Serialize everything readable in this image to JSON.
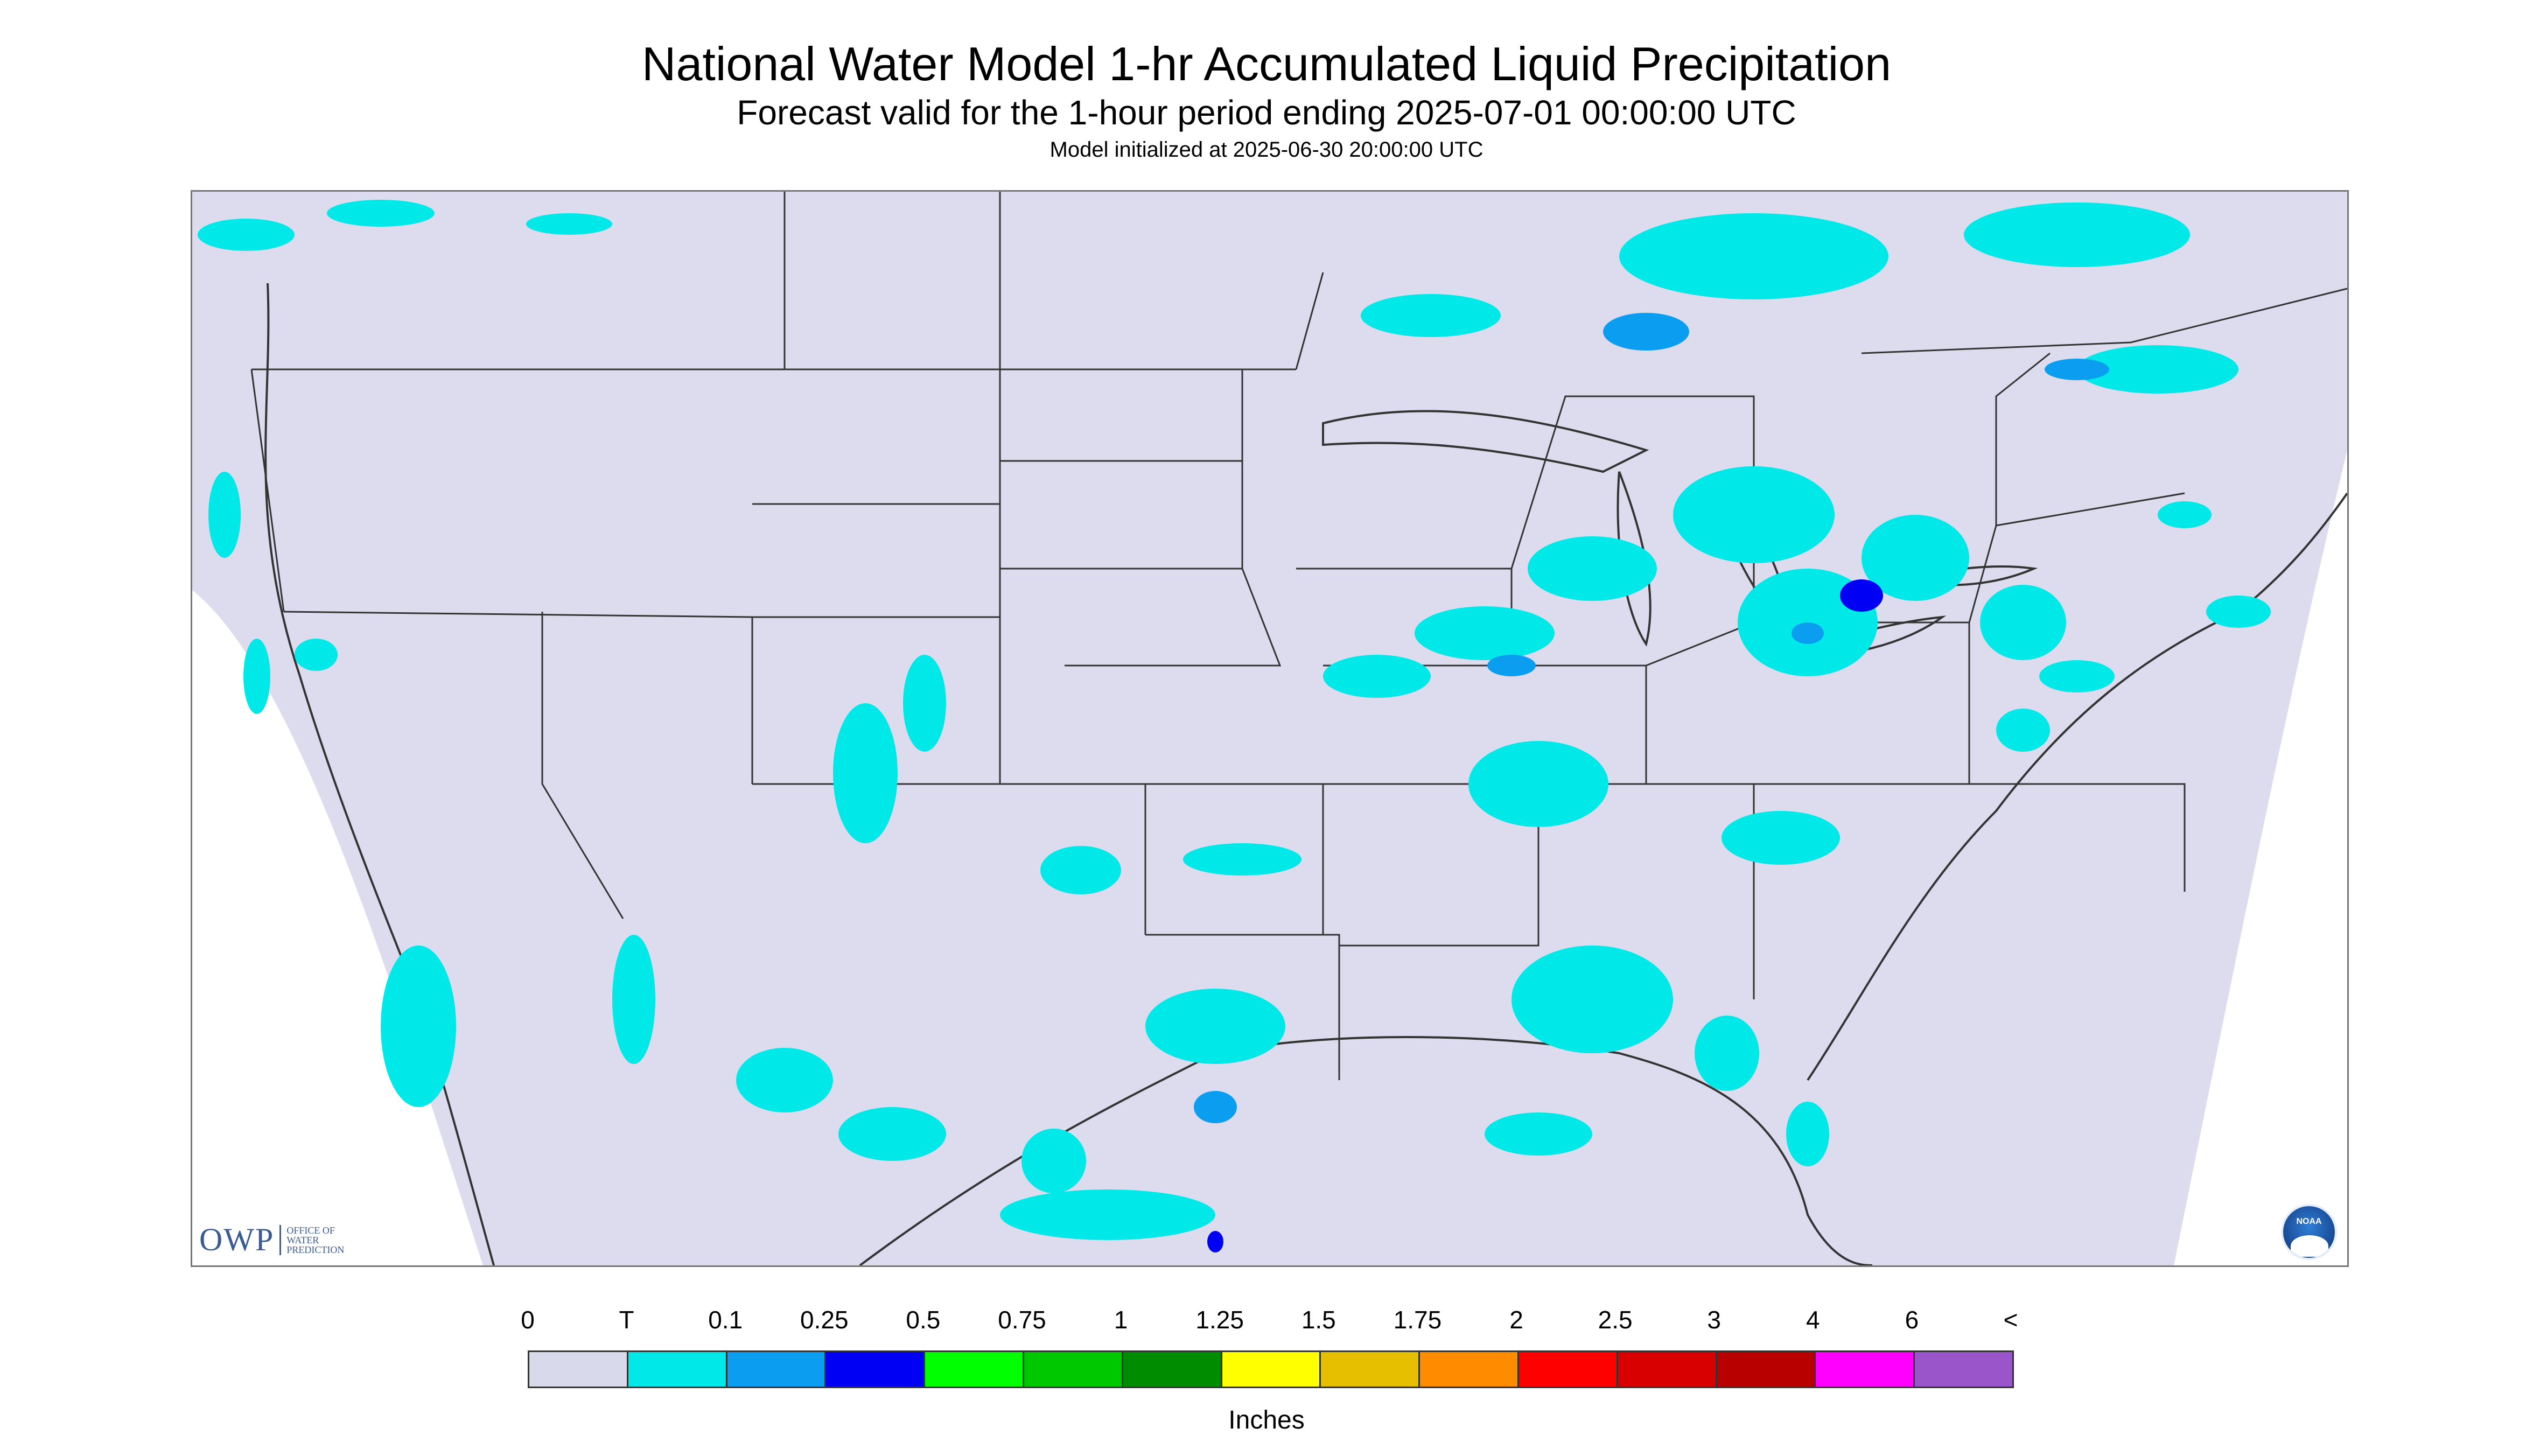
{
  "header": {
    "title": "National Water Model 1-hr Accumulated Liquid Precipitation",
    "subtitle": "Forecast valid for the 1-hour period ending 2025-07-01 00:00:00 UTC",
    "init_line": "Model initialized at 2025-06-30 20:00:00 UTC"
  },
  "logos": {
    "owp_mark": "OWP",
    "owp_text_1": "OFFICE OF",
    "owp_text_2": "WATER",
    "owp_text_3": "PREDICTION",
    "noaa": "NOAA"
  },
  "legend": {
    "labels": [
      "0",
      "T",
      "0.1",
      "0.25",
      "0.5",
      "0.75",
      "1",
      "1.25",
      "1.5",
      "1.75",
      "2",
      "2.5",
      "3",
      "4",
      "6",
      "<"
    ],
    "colors": [
      "#d9d9ec",
      "#00e8e8",
      "#0a9df0",
      "#0000f5",
      "#00ff00",
      "#00c800",
      "#008c00",
      "#ffff00",
      "#e6c000",
      "#ff8c00",
      "#ff0000",
      "#d80000",
      "#b80000",
      "#ff00ff",
      "#9955c9"
    ],
    "units": "Inches"
  },
  "map": {
    "background_color": "#ffffff",
    "domain_color": "#dcdcee",
    "border_color": "#333333"
  }
}
